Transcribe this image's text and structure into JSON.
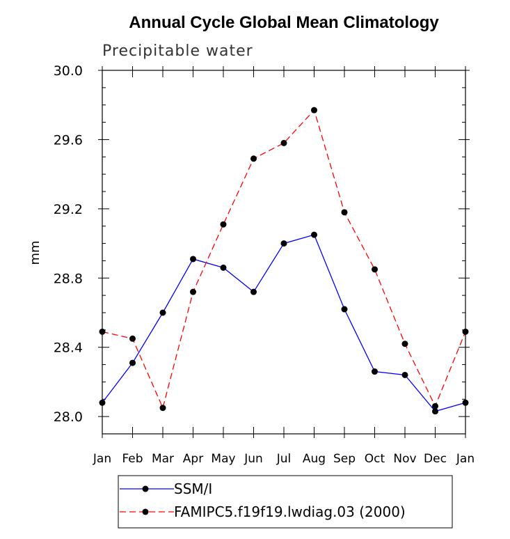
{
  "chart_data": {
    "type": "line",
    "title": "Annual Cycle Global Mean Climatology",
    "subtitle": "Precipitable water",
    "xlabel": "",
    "ylabel": "mm",
    "categories": [
      "Jan",
      "Feb",
      "Mar",
      "Apr",
      "May",
      "Jun",
      "Jul",
      "Aug",
      "Sep",
      "Oct",
      "Nov",
      "Dec",
      "Jan"
    ],
    "ylim": [
      27.9,
      30.0
    ],
    "yticks": [
      "28.0",
      "28.4",
      "28.8",
      "29.2",
      "29.6",
      "30.0"
    ],
    "grid": false,
    "legend_position": "bottom",
    "series": [
      {
        "name": "SSM/I",
        "color": "#0000ff",
        "dash": "solid",
        "values": [
          28.08,
          28.31,
          28.6,
          28.91,
          28.86,
          28.72,
          29.0,
          29.05,
          28.62,
          28.26,
          28.24,
          28.03,
          28.08
        ]
      },
      {
        "name": "FAMIPC5.f19f19.lwdiag.03 (2000)",
        "color": "#ff0000",
        "dash": "dashed",
        "values": [
          28.49,
          28.45,
          28.05,
          28.72,
          29.11,
          29.49,
          29.58,
          29.77,
          29.18,
          28.85,
          28.42,
          28.06,
          28.49
        ]
      }
    ]
  }
}
